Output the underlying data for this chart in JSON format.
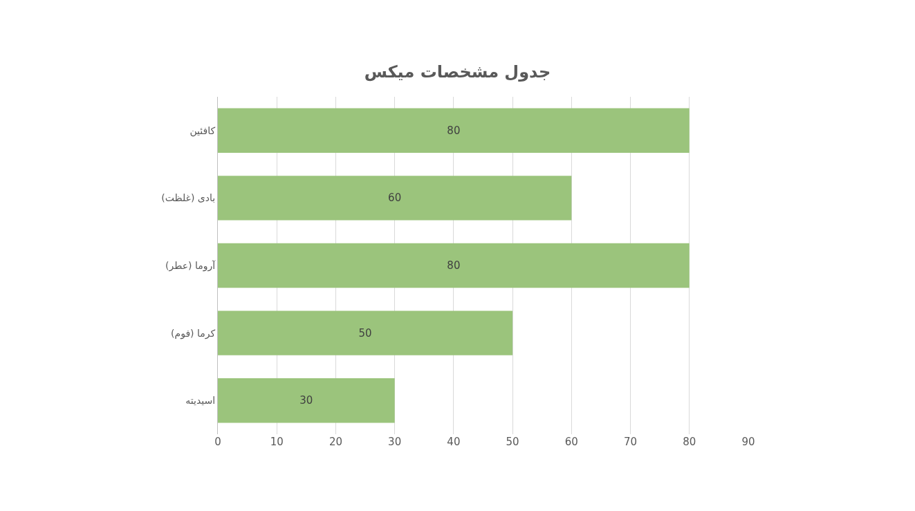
{
  "chart_data": {
    "type": "bar",
    "orientation": "horizontal",
    "title": "جدول مشخصات میکس",
    "categories": [
      "کافئین",
      "بادی (غلظت)",
      "آروما (عطر)",
      "کرما (فوم)",
      "اسیدیته"
    ],
    "values": [
      80,
      60,
      80,
      50,
      30
    ],
    "color": "#9bc47c",
    "data_labels": true,
    "xlim": [
      0,
      90
    ],
    "xticks": [
      0,
      10,
      20,
      30,
      40,
      50,
      60,
      70,
      80,
      90
    ],
    "grid": "x",
    "legend": false
  }
}
